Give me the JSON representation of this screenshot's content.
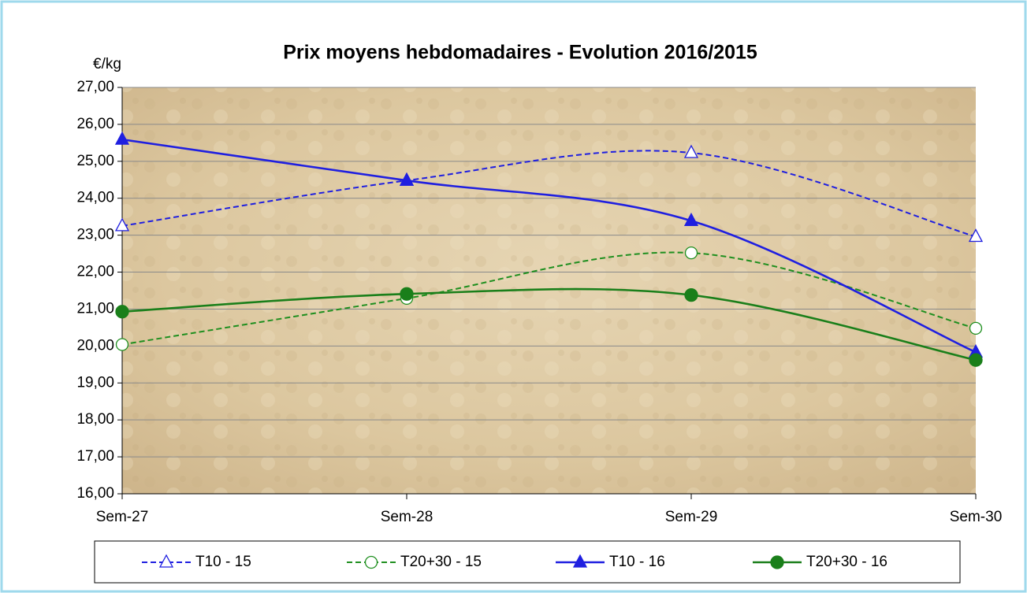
{
  "chart_data": {
    "type": "line",
    "title": "Prix moyens hebdomadaires - Evolution 2016/2015",
    "y_label": "€/kg",
    "categories": [
      "Sem-27",
      "Sem-28",
      "Sem-29",
      "Sem-30"
    ],
    "series": [
      {
        "name": "T10 - 15",
        "color": "#1f1fe0",
        "dashed": true,
        "marker": "triangle",
        "filled": false,
        "values": [
          23.25,
          24.48,
          25.23,
          22.96
        ]
      },
      {
        "name": "T20+30 - 15",
        "color": "#1f8f1f",
        "dashed": true,
        "marker": "circle",
        "filled": false,
        "values": [
          20.04,
          21.29,
          22.52,
          20.48
        ]
      },
      {
        "name": "T10 - 16",
        "color": "#1f1fe0",
        "dashed": false,
        "marker": "triangle",
        "filled": true,
        "values": [
          25.59,
          24.48,
          23.39,
          19.83
        ]
      },
      {
        "name": "T20+30 - 16",
        "color": "#1a7f1a",
        "dashed": false,
        "marker": "circle",
        "filled": true,
        "values": [
          20.93,
          21.41,
          21.38,
          19.62
        ]
      }
    ],
    "ylim": [
      16,
      27
    ],
    "yticks": [
      {
        "value": 16,
        "label": "16,00"
      },
      {
        "value": 17,
        "label": "17,00"
      },
      {
        "value": 18,
        "label": "18,00"
      },
      {
        "value": 19,
        "label": "19,00"
      },
      {
        "value": 20,
        "label": "20,00"
      },
      {
        "value": 21,
        "label": "21,00"
      },
      {
        "value": 22,
        "label": "22,00"
      },
      {
        "value": 23,
        "label": "23,00"
      },
      {
        "value": 24,
        "label": "24,00"
      },
      {
        "value": 25,
        "label": "25,00"
      },
      {
        "value": 26,
        "label": "26,00"
      },
      {
        "value": 27,
        "label": "27,00"
      }
    ],
    "grid": true,
    "legend": "bottom",
    "smooth": true
  }
}
